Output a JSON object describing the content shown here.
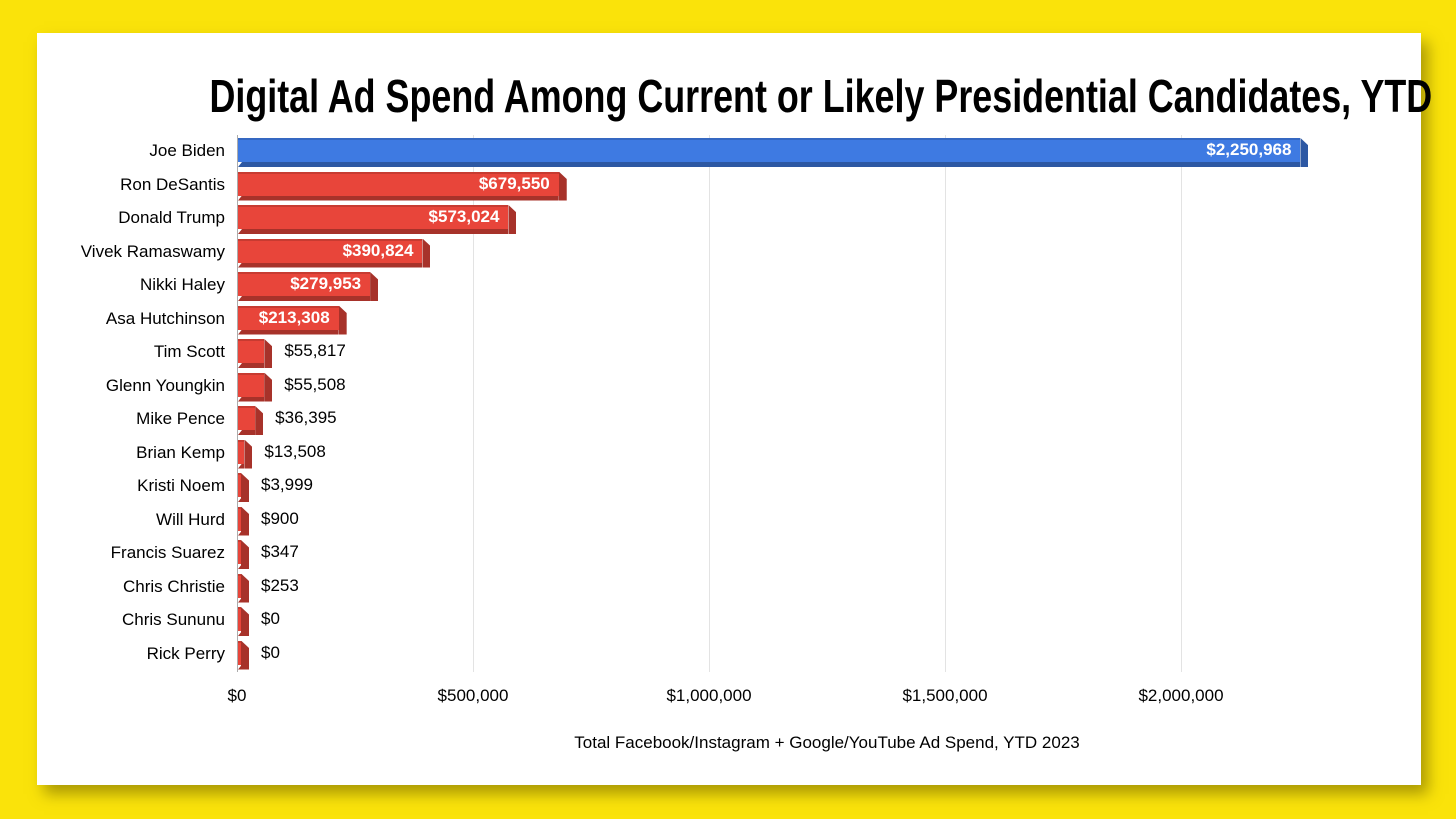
{
  "frame": {
    "background_color": "#FAE30A",
    "card_color": "#FFFFFF"
  },
  "palette": {
    "democrat_blue": "#3E7AE2",
    "republican_red": "#E8453A",
    "gridline_gray": "#E3E3E3",
    "axis_gray": "#ACACAC"
  },
  "chart_data": {
    "type": "bar",
    "orientation": "horizontal",
    "title": "Digital Ad Spend Among Current or Likely Presidential Candidates, YTD",
    "xlabel": "Total Facebook/Instagram + Google/YouTube Ad Spend, YTD 2023",
    "ylabel": "",
    "xlim": [
      0,
      2500000
    ],
    "grid": "vertical",
    "legend": "none",
    "x_ticks": [
      "$0",
      "$500,000",
      "$1,000,000",
      "$1,500,000",
      "$2,000,000"
    ],
    "x_tick_values": [
      0,
      500000,
      1000000,
      1500000,
      2000000
    ],
    "points": [
      {
        "name": "Joe Biden",
        "value": 2250968,
        "label": "$2,250,968",
        "color": "#3E7AE2"
      },
      {
        "name": "Ron DeSantis",
        "value": 679550,
        "label": "$679,550",
        "color": "#E8453A"
      },
      {
        "name": "Donald Trump",
        "value": 573024,
        "label": "$573,024",
        "color": "#E8453A"
      },
      {
        "name": "Vivek Ramaswamy",
        "value": 390824,
        "label": "$390,824",
        "color": "#E8453A"
      },
      {
        "name": "Nikki Haley",
        "value": 279953,
        "label": "$279,953",
        "color": "#E8453A"
      },
      {
        "name": "Asa Hutchinson",
        "value": 213308,
        "label": "$213,308",
        "color": "#E8453A"
      },
      {
        "name": "Tim Scott",
        "value": 55817,
        "label": "$55,817",
        "color": "#E8453A"
      },
      {
        "name": "Glenn Youngkin",
        "value": 55508,
        "label": "$55,508",
        "color": "#E8453A"
      },
      {
        "name": "Mike Pence",
        "value": 36395,
        "label": "$36,395",
        "color": "#E8453A"
      },
      {
        "name": "Brian Kemp",
        "value": 13508,
        "label": "$13,508",
        "color": "#E8453A"
      },
      {
        "name": "Kristi Noem",
        "value": 3999,
        "label": "$3,999",
        "color": "#E8453A"
      },
      {
        "name": "Will Hurd",
        "value": 900,
        "label": "$900",
        "color": "#E8453A"
      },
      {
        "name": "Francis Suarez",
        "value": 347,
        "label": "$347",
        "color": "#E8453A"
      },
      {
        "name": "Chris Christie",
        "value": 253,
        "label": "$253",
        "color": "#E8453A"
      },
      {
        "name": "Chris Sununu",
        "value": 0,
        "label": "$0",
        "color": "#E8453A"
      },
      {
        "name": "Rick Perry",
        "value": 0,
        "label": "$0",
        "color": "#E8453A"
      }
    ]
  }
}
